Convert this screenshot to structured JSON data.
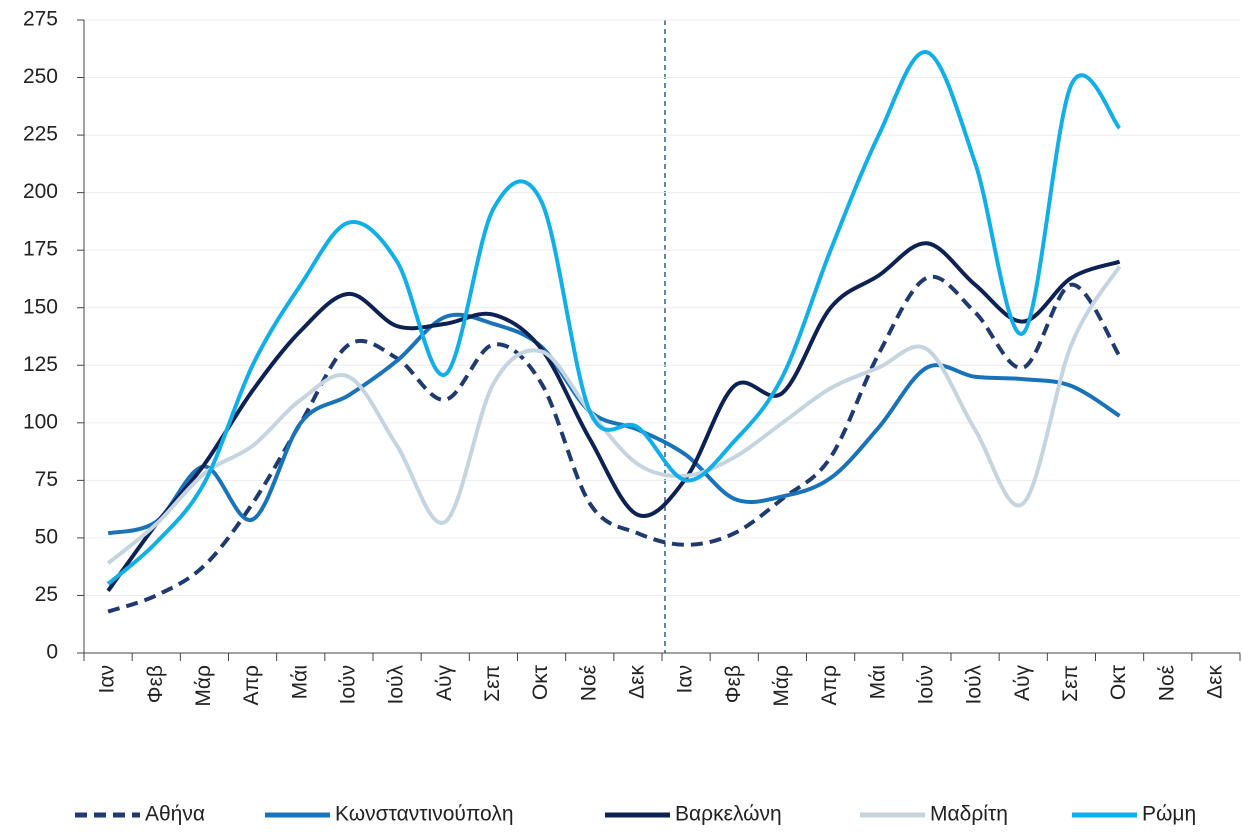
{
  "chart_data": {
    "type": "line",
    "categories": [
      "Ιαν",
      "Φεβ",
      "Μάρ",
      "Απρ",
      "Μάι",
      "Ιούν",
      "Ιούλ",
      "Αύγ",
      "Σεπ",
      "Οκτ",
      "Νοέ",
      "Δεκ",
      "Ιαν",
      "Φεβ",
      "Μάρ",
      "Απρ",
      "Μάι",
      "Ιούν",
      "Ιούλ",
      "Αύγ",
      "Σεπ",
      "Οκτ",
      "Νοέ",
      "Δεκ"
    ],
    "series": [
      {
        "name": "Αθήνα",
        "color": "#1f3a6e",
        "dashed": true,
        "values": [
          18,
          25,
          38,
          65,
          100,
          134,
          128,
          110,
          134,
          117,
          65,
          52,
          47,
          52,
          67,
          85,
          130,
          163,
          148,
          124,
          160,
          129,
          null,
          null
        ]
      },
      {
        "name": "Κωνσταντινούπολη",
        "color": "#1a73b8",
        "values": [
          52,
          57,
          81,
          58,
          100,
          112,
          127,
          146,
          143,
          133,
          105,
          97,
          86,
          67,
          68,
          76,
          98,
          124,
          120,
          119,
          116,
          103,
          null,
          null
        ]
      },
      {
        "name": "Βαρκελώνη",
        "color": "#0d2253",
        "values": [
          27,
          56,
          82,
          114,
          140,
          156,
          142,
          143,
          147,
          132,
          93,
          60,
          76,
          116,
          113,
          150,
          164,
          178,
          160,
          144,
          163,
          170,
          null,
          null
        ]
      },
      {
        "name": "Μαδρίτη",
        "color": "#c5d5e0",
        "values": [
          39,
          56,
          78,
          90,
          110,
          120,
          90,
          57,
          117,
          131,
          105,
          82,
          77,
          85,
          100,
          115,
          124,
          132,
          97,
          65,
          134,
          168,
          null,
          null
        ]
      },
      {
        "name": "Ρώμη",
        "color": "#12aee8",
        "values": [
          30,
          48,
          74,
          125,
          160,
          187,
          170,
          121,
          193,
          196,
          105,
          98,
          75,
          92,
          120,
          175,
          225,
          261,
          213,
          139,
          247,
          228,
          null,
          null
        ]
      }
    ],
    "ylim": [
      0,
      275
    ],
    "yticks": [
      0,
      25,
      50,
      75,
      100,
      125,
      150,
      175,
      200,
      225,
      250,
      275
    ],
    "grid": true,
    "legend": "bottom"
  }
}
